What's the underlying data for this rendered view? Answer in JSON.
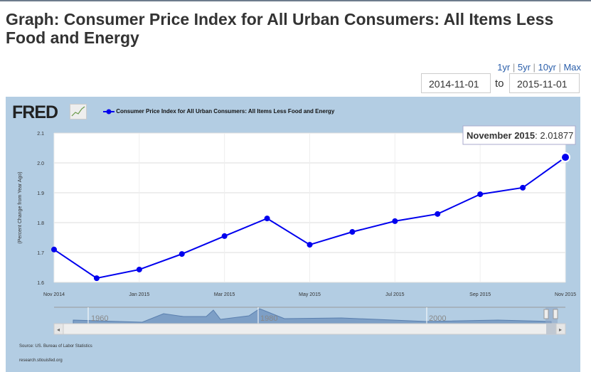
{
  "page_title": "Graph: Consumer Price Index for All Urban Consumers: All Items Less Food and Energy",
  "range_links": [
    "1yr",
    "5yr",
    "10yr",
    "Max"
  ],
  "date_from": "2014-11-01",
  "date_to": "2015-11-01",
  "to_label": "to",
  "logo": "FRED",
  "source": "Source: US. Bureau of Labor Statistics",
  "site": "research.stlouisfed.org",
  "navigator_labels": [
    "1960",
    "1980",
    "2000"
  ],
  "tooltip": {
    "label": "November 2015",
    "value": ": 2.01877"
  },
  "colors": {
    "series": "#0000ee",
    "panel": "#b3cde3"
  },
  "chart_data": {
    "type": "line",
    "title": "Consumer Price Index for All Urban Consumers: All Items Less Food and Energy",
    "ylabel": "(Percent Change from Year Ago)",
    "xlabel": "",
    "ylim": [
      1.6,
      2.1
    ],
    "yticks": [
      "1.6",
      "1.7",
      "1.8",
      "1.9",
      "2.0",
      "2.1"
    ],
    "xticks": [
      "Nov 2014",
      "Jan 2015",
      "Mar 2015",
      "May 2015",
      "Jul 2015",
      "Sep 2015",
      "Nov 2015"
    ],
    "x": [
      "2014-11",
      "2014-12",
      "2015-01",
      "2015-02",
      "2015-03",
      "2015-04",
      "2015-05",
      "2015-06",
      "2015-07",
      "2015-08",
      "2015-09",
      "2015-10",
      "2015-11"
    ],
    "series": [
      {
        "name": "Consumer Price Index for All Urban Consumers: All Items Less Food and Energy",
        "values": [
          1.71,
          1.614,
          1.643,
          1.695,
          1.755,
          1.814,
          1.726,
          1.769,
          1.805,
          1.829,
          1.895,
          1.917,
          2.01877
        ]
      }
    ],
    "legend": "top-left",
    "grid": true
  }
}
